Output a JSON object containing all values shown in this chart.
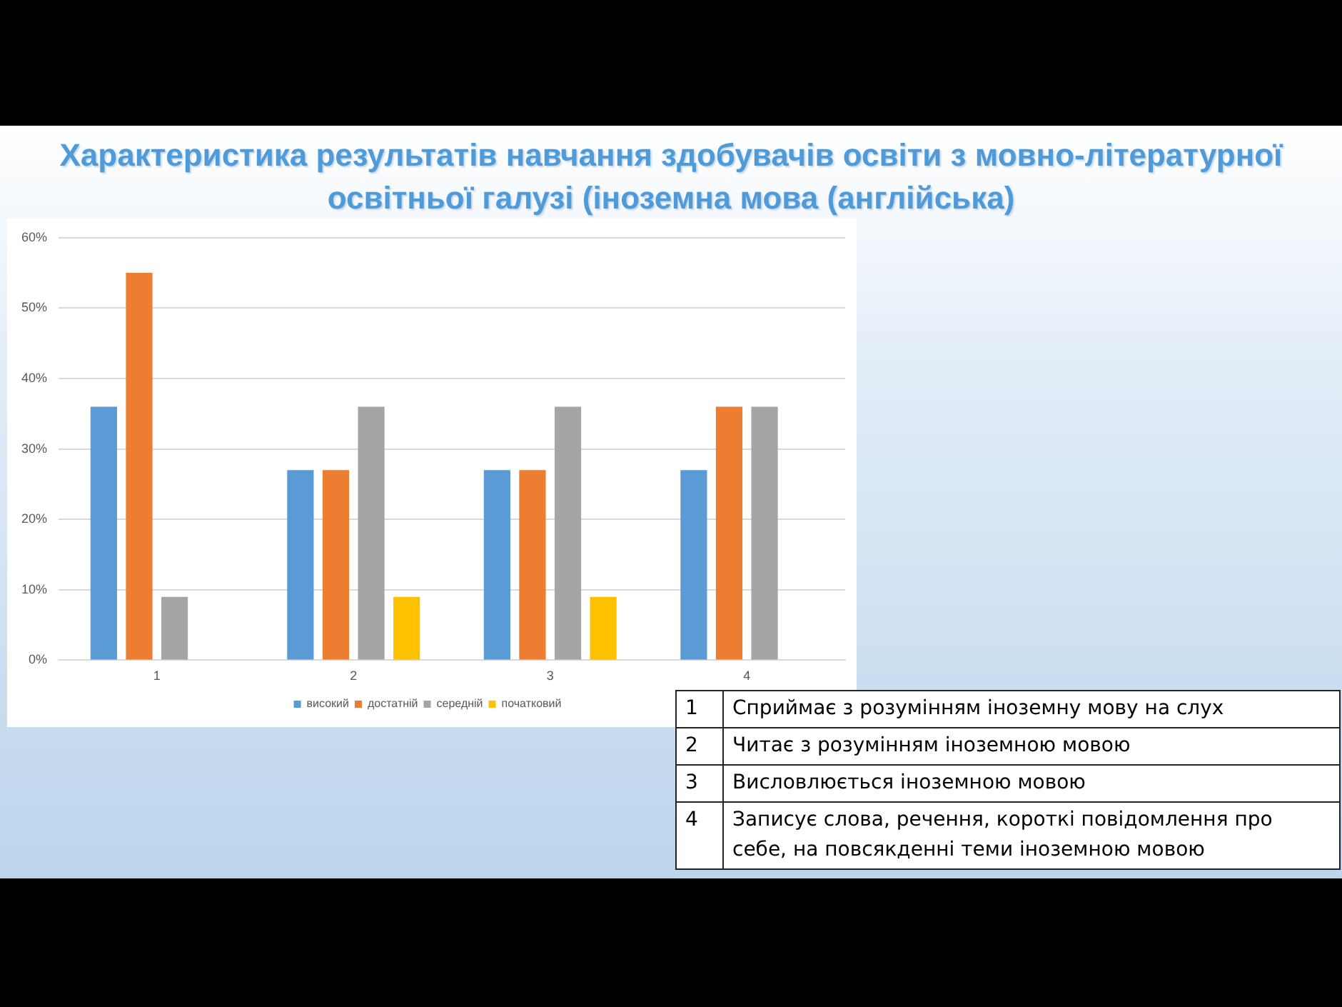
{
  "chart_data": {
    "type": "bar",
    "title": "Характеристика результатів навчання здобувачів освіти з мовно-літературної освітньої галузі  (іноземна мова (англійська)",
    "categories": [
      "1",
      "2",
      "3",
      "4"
    ],
    "series": [
      {
        "name": "високий",
        "color": "#5b9bd5",
        "values": [
          36,
          27,
          27,
          27
        ]
      },
      {
        "name": "достатній",
        "color": "#ed7d31",
        "values": [
          55,
          27,
          27,
          36
        ]
      },
      {
        "name": "середній",
        "color": "#a5a5a5",
        "values": [
          9,
          36,
          36,
          36
        ]
      },
      {
        "name": "початковий",
        "color": "#ffc000",
        "values": [
          0,
          9,
          9,
          0
        ]
      }
    ],
    "ylim": [
      0,
      60
    ],
    "yticks": [
      {
        "value": 0,
        "label": "0%"
      },
      {
        "value": 10,
        "label": "10%"
      },
      {
        "value": 20,
        "label": "20%"
      },
      {
        "value": 30,
        "label": "30%"
      },
      {
        "value": 40,
        "label": "40%"
      },
      {
        "value": 50,
        "label": "50%"
      },
      {
        "value": 60,
        "label": "60%"
      }
    ],
    "grid": "y",
    "legend": "bottom",
    "annotations": [
      "Сприймає з розумінням іноземну мову на слух",
      "Читає з розумінням іноземною мовою",
      "Висловлюється іноземною мовою",
      "Записує слова, речення, короткі повідомлення про себе, на повсякденні теми іноземною мовою"
    ]
  }
}
